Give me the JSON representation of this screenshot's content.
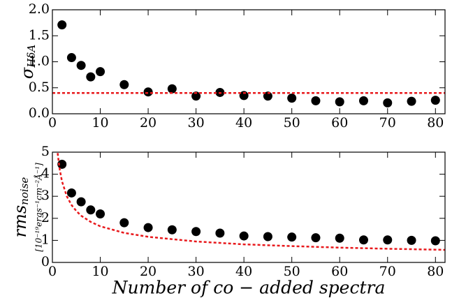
{
  "chart_data": [
    {
      "type": "scatter",
      "ylabel": "σ",
      "ylabel_subscript": "HδA",
      "xlim": [
        0,
        82
      ],
      "xticks": [
        0,
        10,
        20,
        30,
        40,
        50,
        60,
        70,
        80
      ],
      "ylim": [
        0,
        2.0
      ],
      "yticks": [
        {
          "value": 0,
          "label": "0.0"
        },
        {
          "value": 0.5,
          "label": "0.5"
        },
        {
          "value": 1.0,
          "label": "1.0"
        },
        {
          "value": 1.5,
          "label": "1.5"
        },
        {
          "value": 2.0,
          "label": "2.0"
        }
      ],
      "series": [
        {
          "kind": "points",
          "color": "#000000",
          "x": [
            2,
            4,
            6,
            8,
            10,
            15,
            20,
            25,
            30,
            35,
            40,
            45,
            50,
            55,
            60,
            65,
            70,
            75,
            80
          ],
          "values": [
            1.71,
            1.08,
            0.93,
            0.71,
            0.81,
            0.56,
            0.42,
            0.48,
            0.34,
            0.41,
            0.35,
            0.34,
            0.3,
            0.25,
            0.23,
            0.25,
            0.21,
            0.24,
            0.26
          ]
        },
        {
          "kind": "line",
          "style": "dashed",
          "color": "#e8191c",
          "x": [
            0,
            82
          ],
          "values": [
            0.4,
            0.4
          ]
        }
      ]
    },
    {
      "type": "scatter",
      "ylabel": "rms",
      "ylabel_subscript": "noise",
      "ylabel_units": "[10⁻¹⁹ergs⁻¹cm⁻²Å⁻¹]",
      "xlabel": "Number of co − added spectra",
      "xlim": [
        0,
        82
      ],
      "xticks": [
        0,
        10,
        20,
        30,
        40,
        50,
        60,
        70,
        80
      ],
      "ylim": [
        0,
        5
      ],
      "yticks": [
        0,
        1,
        2,
        3,
        4,
        5
      ],
      "series": [
        {
          "kind": "points",
          "color": "#000000",
          "x": [
            2,
            4,
            6,
            8,
            10,
            15,
            20,
            25,
            30,
            35,
            40,
            45,
            50,
            55,
            60,
            65,
            70,
            75,
            80
          ],
          "values": [
            4.45,
            3.15,
            2.75,
            2.38,
            2.2,
            1.8,
            1.58,
            1.48,
            1.4,
            1.33,
            1.2,
            1.17,
            1.15,
            1.12,
            1.1,
            1.02,
            1.02,
            1.0,
            0.98
          ]
        },
        {
          "kind": "line",
          "style": "dashed",
          "color": "#e8191c",
          "x": [
            1.1,
            1.5,
            2,
            3,
            4,
            5,
            6,
            8,
            10,
            15,
            20,
            30,
            40,
            50,
            60,
            70,
            80,
            82
          ],
          "values": [
            4.96,
            4.25,
            3.68,
            3.0,
            2.6,
            2.33,
            2.12,
            1.84,
            1.64,
            1.34,
            1.16,
            0.95,
            0.82,
            0.74,
            0.67,
            0.62,
            0.58,
            0.57
          ]
        }
      ]
    }
  ]
}
